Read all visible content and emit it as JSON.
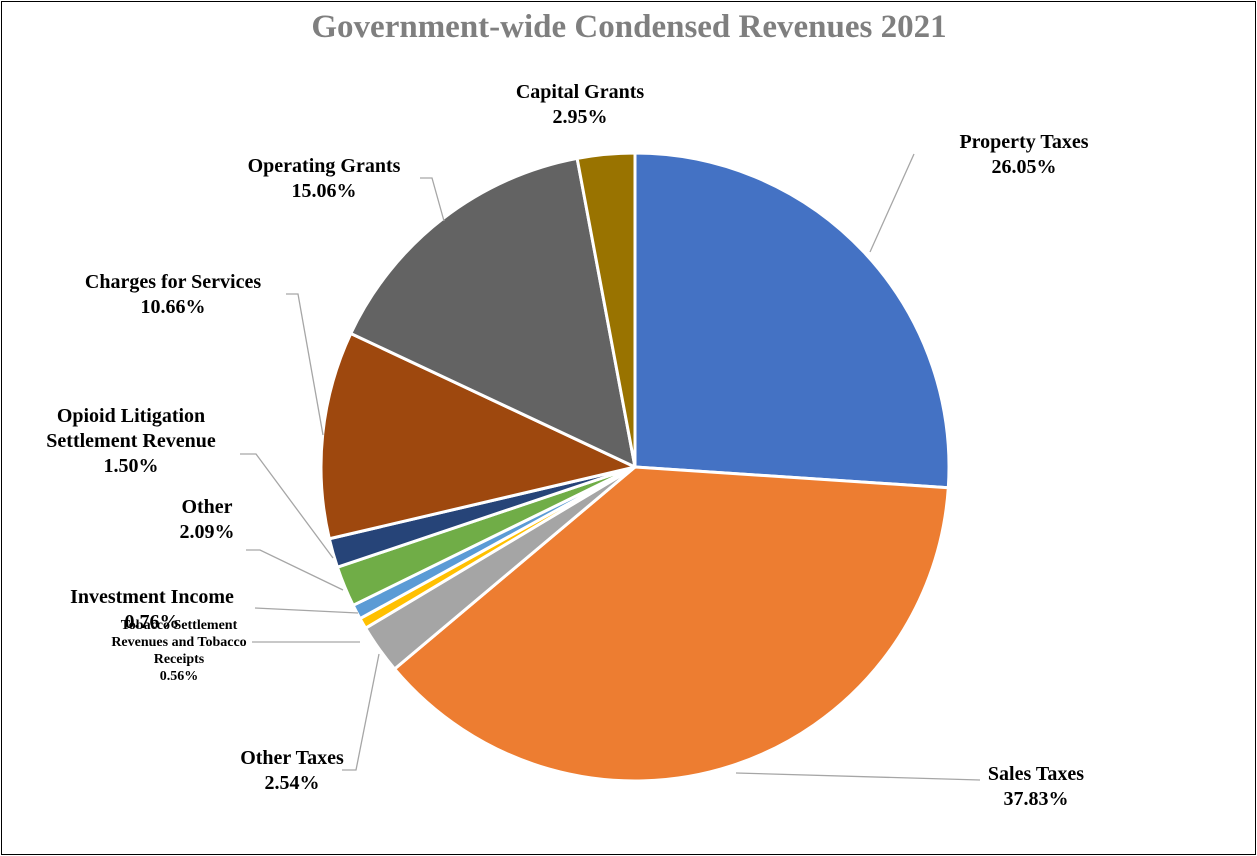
{
  "chart_data": {
    "type": "pie",
    "title": "Government-wide Condensed Revenues 2021",
    "start_angle_deg": 0,
    "direction": "clockwise",
    "slices": [
      {
        "name": "Property Taxes",
        "label_lines": [
          "Property Taxes"
        ],
        "value": 26.05,
        "value_label": "26.05%",
        "color": "#4472C4"
      },
      {
        "name": "Sales Taxes",
        "label_lines": [
          "Sales Taxes"
        ],
        "value": 37.83,
        "value_label": "37.83%",
        "color": "#ED7D31"
      },
      {
        "name": "Other Taxes",
        "label_lines": [
          "Other Taxes"
        ],
        "value": 2.54,
        "value_label": "2.54%",
        "color": "#A5A5A5"
      },
      {
        "name": "Tobacco Settlement Revenues and Tobacco Receipts",
        "label_lines": [
          "Tobacco Settlement",
          "Revenues and Tobacco",
          "Receipts"
        ],
        "value": 0.56,
        "value_label": "0.56%",
        "color": "#FFC000"
      },
      {
        "name": "Investment Income",
        "label_lines": [
          "Investment Income"
        ],
        "value": 0.76,
        "value_label": "0.76%",
        "color": "#5B9BD5"
      },
      {
        "name": "Other",
        "label_lines": [
          "Other"
        ],
        "value": 2.09,
        "value_label": "2.09%",
        "color": "#70AD47"
      },
      {
        "name": "Opioid Litigation Settlement Revenue",
        "label_lines": [
          "Opioid Litigation",
          "Settlement Revenue"
        ],
        "value": 1.5,
        "value_label": "1.50%",
        "color": "#264478"
      },
      {
        "name": "Charges for Services",
        "label_lines": [
          "Charges for Services"
        ],
        "value": 10.66,
        "value_label": "10.66%",
        "color": "#9E480E"
      },
      {
        "name": "Operating Grants",
        "label_lines": [
          "Operating Grants"
        ],
        "value": 15.06,
        "value_label": "15.06%",
        "color": "#636363"
      },
      {
        "name": "Capital Grants",
        "label_lines": [
          "Capital Grants"
        ],
        "value": 2.95,
        "value_label": "2.95%",
        "color": "#997300"
      }
    ]
  }
}
